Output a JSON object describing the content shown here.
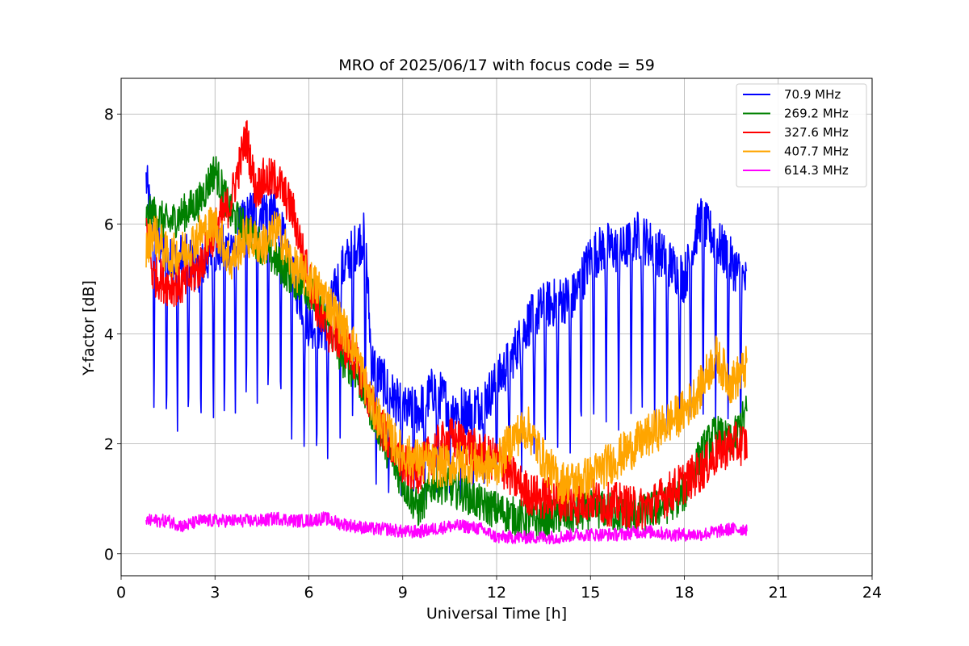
{
  "chart_data": {
    "type": "line",
    "title": "MRO of 2025/06/17 with focus code = 59",
    "xlabel": "Universal Time [h]",
    "ylabel": "Y-factor [dB]",
    "xlim": [
      0,
      24
    ],
    "ylim": [
      -0.4,
      8.65
    ],
    "xticks": [
      "0",
      "3",
      "6",
      "9",
      "12",
      "15",
      "18",
      "21",
      "24"
    ],
    "yticks": [
      "0",
      "2",
      "4",
      "6",
      "8"
    ],
    "grid": true,
    "legend_position": "top-right",
    "noise_note": "values are the approximate center trend of each noisy trace",
    "series": [
      {
        "name": " 70.9 MHz",
        "color": "#0000ff",
        "x": [
          0.8,
          1.0,
          1.5,
          2.0,
          2.5,
          3.0,
          3.5,
          4.0,
          4.5,
          5.0,
          5.5,
          6.0,
          6.5,
          7.0,
          7.5,
          7.8,
          8.0,
          8.5,
          9.0,
          9.5,
          10.0,
          10.5,
          11.0,
          11.5,
          12.0,
          12.5,
          13.0,
          13.5,
          14.0,
          14.5,
          15.0,
          15.5,
          16.0,
          16.5,
          17.0,
          17.5,
          18.0,
          18.5,
          19.0,
          19.5,
          20.0
        ],
        "values": [
          6.8,
          5.9,
          5.3,
          5.4,
          5.2,
          5.5,
          5.6,
          6.1,
          6.3,
          6.1,
          5.0,
          4.2,
          4.1,
          5.1,
          5.6,
          5.8,
          3.5,
          3.0,
          2.6,
          2.6,
          3.0,
          2.7,
          2.6,
          2.7,
          3.1,
          3.6,
          4.2,
          4.5,
          4.6,
          4.7,
          5.4,
          5.6,
          5.5,
          5.8,
          5.6,
          5.3,
          5.0,
          6.1,
          5.7,
          5.3,
          4.9
        ],
        "spikes_down": [
          1.05,
          1.45,
          1.8,
          2.15,
          2.55,
          2.95,
          3.3,
          3.65,
          4.0,
          4.35,
          4.7,
          5.1,
          5.45,
          5.85,
          6.25,
          6.6,
          7.0,
          7.4,
          7.8,
          8.15,
          8.55,
          8.95,
          9.35,
          9.7,
          10.1,
          10.5,
          10.85,
          11.25,
          11.6,
          12.0,
          12.4,
          12.8,
          13.2,
          13.55,
          13.95,
          14.35,
          14.7,
          15.1,
          15.5,
          15.9,
          16.3,
          16.65,
          17.05,
          17.45,
          17.85,
          18.2,
          18.6,
          19.0,
          19.4,
          19.8
        ]
      },
      {
        "name": "269.2 MHz",
        "color": "#008000",
        "x": [
          0.8,
          1.0,
          1.5,
          2.0,
          2.5,
          3.0,
          3.5,
          4.0,
          4.5,
          5.0,
          5.5,
          6.0,
          6.5,
          7.0,
          7.5,
          8.0,
          8.5,
          9.0,
          9.5,
          10.0,
          10.5,
          11.0,
          11.5,
          12.0,
          12.5,
          13.0,
          13.5,
          14.0,
          14.5,
          15.0,
          15.5,
          16.0,
          16.5,
          17.0,
          17.5,
          18.0,
          18.5,
          19.0,
          19.5,
          20.0
        ],
        "values": [
          6.1,
          6.2,
          6.0,
          6.2,
          6.4,
          7.0,
          6.2,
          5.9,
          5.6,
          5.3,
          5.0,
          4.8,
          4.3,
          3.6,
          3.3,
          2.6,
          1.9,
          1.3,
          0.8,
          1.3,
          1.2,
          1.1,
          0.9,
          0.8,
          0.7,
          0.6,
          0.6,
          0.7,
          0.7,
          0.8,
          0.8,
          0.7,
          0.7,
          0.8,
          0.9,
          1.1,
          1.8,
          2.2,
          2.0,
          2.6
        ]
      },
      {
        "name": "327.6 MHz",
        "color": "#ff0000",
        "x": [
          0.8,
          1.0,
          1.5,
          2.0,
          2.5,
          3.0,
          3.5,
          4.0,
          4.3,
          4.5,
          5.0,
          5.5,
          6.0,
          6.5,
          7.0,
          7.5,
          8.0,
          8.5,
          9.0,
          9.5,
          10.0,
          10.5,
          11.0,
          11.5,
          12.0,
          12.5,
          13.0,
          13.5,
          14.0,
          14.5,
          15.0,
          15.5,
          16.0,
          16.5,
          17.0,
          17.5,
          18.0,
          18.5,
          19.0,
          19.5,
          20.0
        ],
        "values": [
          6.0,
          5.1,
          4.9,
          4.9,
          5.2,
          5.9,
          6.4,
          7.6,
          6.6,
          6.8,
          6.8,
          6.2,
          5.0,
          4.1,
          3.9,
          3.5,
          2.7,
          2.1,
          1.6,
          1.5,
          1.9,
          2.1,
          2.0,
          1.8,
          1.7,
          1.4,
          1.1,
          1.0,
          1.0,
          0.9,
          1.0,
          0.9,
          0.9,
          0.8,
          0.9,
          1.1,
          1.3,
          1.5,
          1.8,
          2.0,
          2.0
        ]
      },
      {
        "name": "407.7 MHz",
        "color": "#ffa500",
        "x": [
          0.8,
          1.0,
          1.5,
          2.0,
          2.5,
          3.0,
          3.5,
          4.0,
          4.5,
          5.0,
          5.5,
          6.0,
          6.5,
          7.0,
          7.5,
          8.0,
          8.5,
          9.0,
          9.5,
          10.0,
          10.5,
          11.0,
          11.5,
          12.0,
          12.5,
          13.0,
          13.5,
          14.0,
          14.5,
          15.0,
          15.5,
          16.0,
          16.5,
          17.0,
          17.5,
          18.0,
          18.5,
          19.0,
          19.5,
          20.0
        ],
        "values": [
          5.5,
          5.9,
          5.4,
          5.5,
          5.8,
          6.0,
          5.3,
          5.8,
          5.6,
          5.9,
          5.2,
          5.0,
          4.7,
          4.2,
          3.7,
          2.7,
          2.2,
          1.8,
          1.7,
          1.6,
          1.6,
          1.7,
          1.6,
          1.6,
          2.1,
          2.3,
          1.7,
          1.3,
          1.3,
          1.4,
          1.6,
          1.8,
          2.0,
          2.2,
          2.4,
          2.6,
          3.0,
          3.6,
          3.1,
          3.4
        ]
      },
      {
        "name": "614.3 MHz",
        "color": "#ff00ff",
        "x": [
          0.8,
          1.5,
          2.0,
          2.5,
          3.0,
          3.5,
          4.0,
          4.5,
          5.0,
          5.5,
          6.0,
          6.5,
          7.0,
          7.5,
          8.0,
          8.5,
          9.0,
          9.5,
          10.0,
          10.5,
          11.0,
          11.5,
          12.0,
          12.5,
          13.0,
          13.5,
          14.0,
          14.5,
          15.0,
          15.5,
          16.0,
          16.5,
          17.0,
          17.5,
          18.0,
          18.5,
          19.0,
          19.5,
          20.0
        ],
        "values": [
          0.6,
          0.6,
          0.5,
          0.6,
          0.6,
          0.6,
          0.6,
          0.6,
          0.65,
          0.6,
          0.6,
          0.65,
          0.55,
          0.5,
          0.45,
          0.45,
          0.4,
          0.4,
          0.45,
          0.5,
          0.5,
          0.45,
          0.3,
          0.3,
          0.3,
          0.3,
          0.3,
          0.35,
          0.35,
          0.35,
          0.35,
          0.4,
          0.4,
          0.35,
          0.35,
          0.35,
          0.4,
          0.45,
          0.45
        ]
      }
    ]
  }
}
